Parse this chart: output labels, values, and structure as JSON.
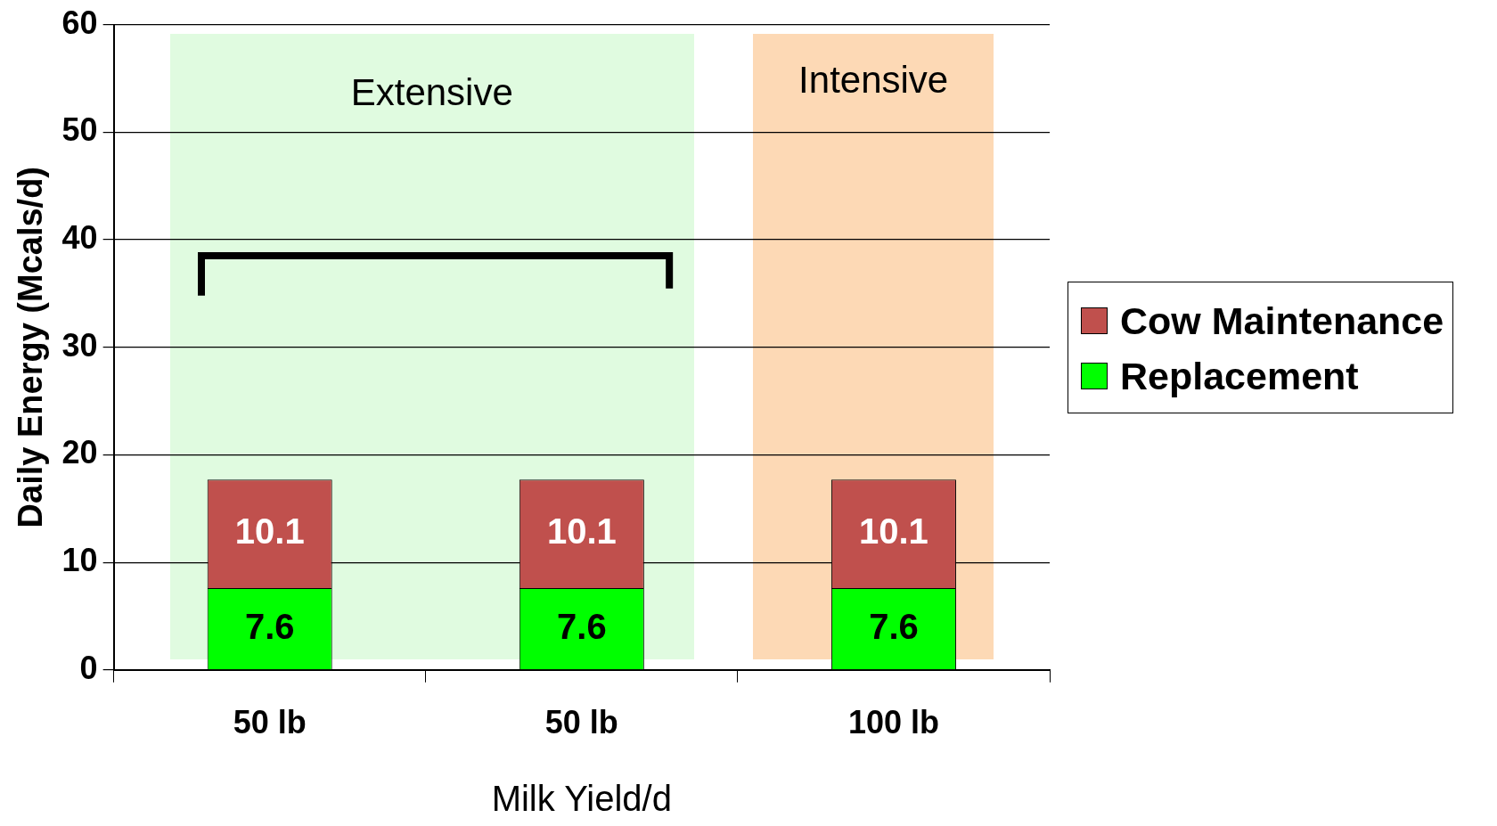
{
  "chart_data": {
    "type": "bar",
    "xlabel": "Milk Yield/d",
    "ylabel": "Daily Energy (Mcals/d)",
    "categories": [
      "50 lb",
      "50 lb",
      "100 lb"
    ],
    "series": [
      {
        "name": "Replacement",
        "color": "#00ff00",
        "values": [
          7.6,
          7.6,
          7.6
        ]
      },
      {
        "name": "Cow Maintenance",
        "color": "#c0504d",
        "values": [
          10.1,
          10.1,
          10.1
        ]
      }
    ],
    "stacked": true,
    "data_labels": true,
    "ylim": [
      0,
      60
    ],
    "yticks": [
      0,
      10,
      20,
      30,
      40,
      50,
      60
    ],
    "grid": "y",
    "legend": "right",
    "annotations": [
      "Extensive",
      "Intensive"
    ]
  }
}
